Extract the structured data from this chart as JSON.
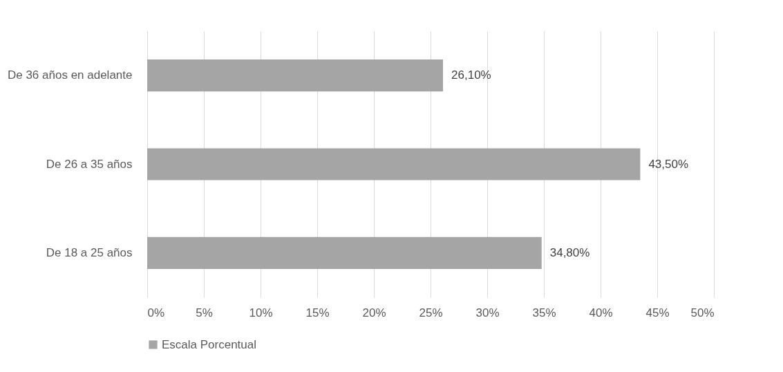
{
  "chart_data": {
    "type": "bar",
    "orientation": "horizontal",
    "categories": [
      "De 36 años en adelante",
      "De 26 a 35 años",
      "De 18 a 25 años"
    ],
    "series": [
      {
        "name": "Escala Porcentual",
        "color": "#a5a5a5",
        "values": [
          26.1,
          43.5,
          34.8
        ],
        "value_labels": [
          "26,10%",
          "43,50%",
          "34,80%"
        ]
      }
    ],
    "xlim": [
      0,
      50
    ],
    "xticks": [
      {
        "value": 0,
        "label": "0%"
      },
      {
        "value": 5,
        "label": "5%"
      },
      {
        "value": 10,
        "label": "10%"
      },
      {
        "value": 15,
        "label": "15%"
      },
      {
        "value": 20,
        "label": "20%"
      },
      {
        "value": 25,
        "label": "25%"
      },
      {
        "value": 30,
        "label": "30%"
      },
      {
        "value": 35,
        "label": "35%"
      },
      {
        "value": 40,
        "label": "40%"
      },
      {
        "value": 45,
        "label": "45%"
      },
      {
        "value": 50,
        "label": "50%"
      }
    ],
    "grid": "x",
    "legend": "bottom"
  }
}
